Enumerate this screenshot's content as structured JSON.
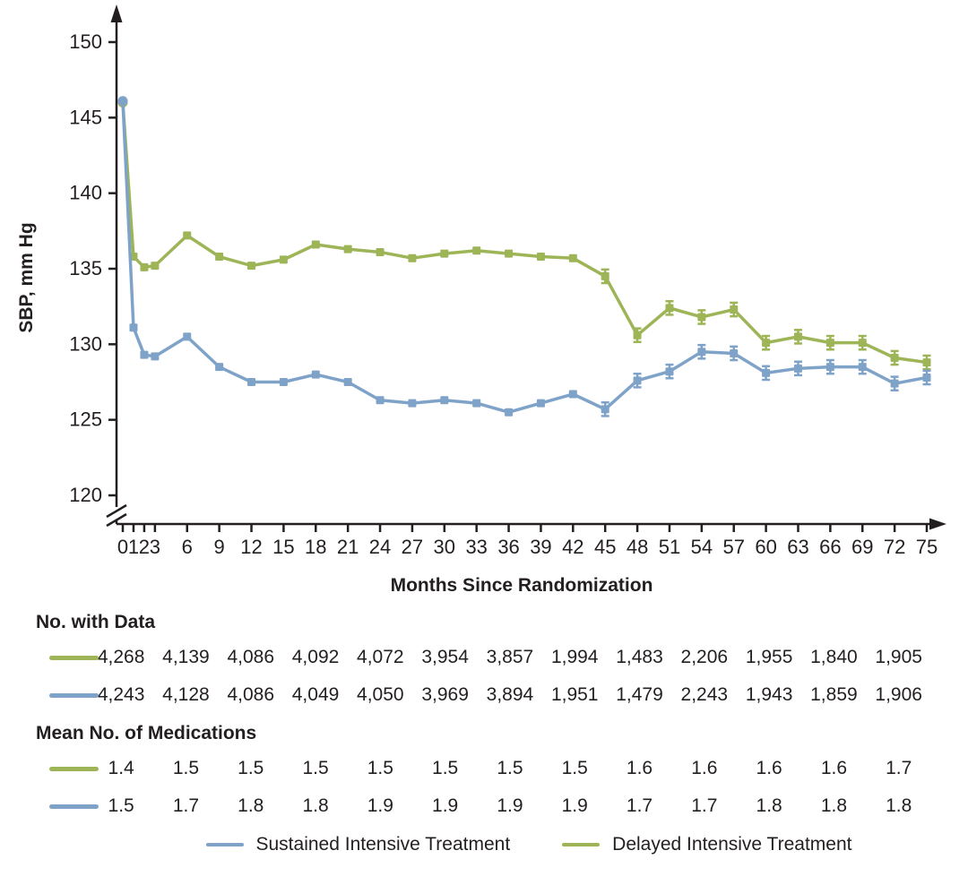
{
  "chart_data": {
    "type": "line",
    "title": "",
    "xlabel": "Months Since Randomization",
    "ylabel": "SBP, mm Hg",
    "x": [
      0,
      1,
      2,
      3,
      6,
      9,
      12,
      15,
      18,
      21,
      24,
      27,
      30,
      33,
      36,
      39,
      42,
      45,
      48,
      51,
      54,
      57,
      60,
      63,
      66,
      69,
      72,
      75
    ],
    "ylim": [
      120,
      150
    ],
    "y_ticks": [
      120,
      125,
      130,
      135,
      140,
      145,
      150
    ],
    "axis_break": true,
    "grid": false,
    "error_bars_from_month": 45,
    "error_bar_halfwidth_mmhg": 0.45,
    "series": [
      {
        "name": "Delayed Intensive Treatment",
        "color": "#9db457",
        "values": [
          146.0,
          135.8,
          135.1,
          135.2,
          137.2,
          135.8,
          135.2,
          135.6,
          136.6,
          136.3,
          136.1,
          135.7,
          136.0,
          136.2,
          136.0,
          135.8,
          135.7,
          134.5,
          130.6,
          132.4,
          131.8,
          132.3,
          130.1,
          130.5,
          130.1,
          130.1,
          129.1,
          128.8
        ]
      },
      {
        "name": "Sustained Intensive Treatment",
        "color": "#7fa3c8",
        "values": [
          146.1,
          131.1,
          129.3,
          129.2,
          130.5,
          128.5,
          127.5,
          127.5,
          128.0,
          127.5,
          126.3,
          126.1,
          126.3,
          126.1,
          125.5,
          126.1,
          126.7,
          125.7,
          127.6,
          128.2,
          129.5,
          129.4,
          128.1,
          128.4,
          128.5,
          128.5,
          127.4,
          127.8
        ]
      }
    ]
  },
  "tables": {
    "no_with_data_label": "No. with Data",
    "no_with_data": {
      "delayed": [
        "4,268",
        "4,139",
        "4,086",
        "4,092",
        "4,072",
        "3,954",
        "3,857",
        "1,994",
        "1,483",
        "2,206",
        "1,955",
        "1,840",
        "1,905"
      ],
      "sustained": [
        "4,243",
        "4,128",
        "4,086",
        "4,049",
        "4,050",
        "3,969",
        "3,894",
        "1,951",
        "1,479",
        "2,243",
        "1,943",
        "1,859",
        "1,906"
      ]
    },
    "mean_medications_label": "Mean No. of Medications",
    "mean_medications": {
      "delayed": [
        "1.4",
        "1.5",
        "1.5",
        "1.5",
        "1.5",
        "1.5",
        "1.5",
        "1.5",
        "1.6",
        "1.6",
        "1.6",
        "1.6",
        "1.7"
      ],
      "sustained": [
        "1.5",
        "1.7",
        "1.8",
        "1.8",
        "1.9",
        "1.9",
        "1.9",
        "1.9",
        "1.7",
        "1.7",
        "1.8",
        "1.8",
        "1.8"
      ]
    }
  },
  "legend": {
    "sustained": "Sustained Intensive Treatment",
    "delayed": "Delayed Intensive Treatment"
  },
  "colors": {
    "delayed": "#9db457",
    "sustained": "#7fa3c8",
    "axis": "#231f20",
    "text": "#231f20"
  }
}
